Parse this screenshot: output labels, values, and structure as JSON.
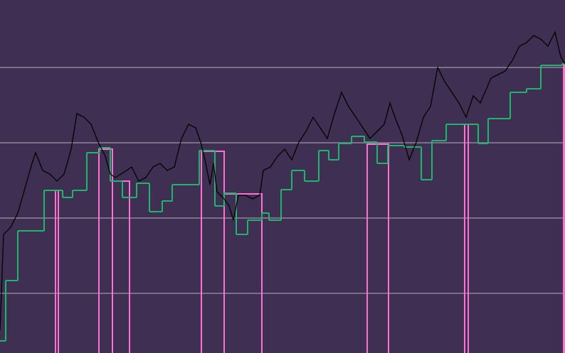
{
  "chart_data": {
    "type": "line",
    "background": "#3f2f52",
    "xlim": [
      0,
      794
    ],
    "ylim": [
      0,
      497
    ],
    "yticks": [
      84,
      190,
      296,
      402
    ],
    "grid": true,
    "grid_color": "#b8b0c0",
    "series": [
      {
        "color": "#000000",
        "style": "line",
        "x": [
          0,
          5,
          15,
          25,
          35,
          45,
          50,
          60,
          70,
          80,
          90,
          100,
          108,
          118,
          128,
          138,
          148,
          155,
          162,
          170,
          178,
          185,
          195,
          205,
          215,
          225,
          235,
          245,
          255,
          265,
          275,
          282,
          288,
          295,
          300,
          305,
          315,
          322,
          328,
          335,
          345,
          355,
          365,
          370,
          380,
          390,
          400,
          410,
          420,
          430,
          440,
          450,
          460,
          470,
          480,
          490,
          500,
          510,
          520,
          530,
          540,
          548,
          555,
          565,
          575,
          585,
          595,
          605,
          615,
          625,
          635,
          645,
          655,
          665,
          675,
          690,
          700,
          710,
          720,
          730,
          740,
          750,
          760,
          770,
          780,
          788,
          794
        ],
        "values": [
          32,
          167,
          177,
          197,
          232,
          267,
          282,
          257,
          252,
          242,
          252,
          287,
          337,
          332,
          322,
          297,
          277,
          252,
          247,
          252,
          257,
          262,
          242,
          247,
          262,
          267,
          257,
          262,
          302,
          322,
          317,
          297,
          272,
          237,
          267,
          227,
          217,
          207,
          187,
          222,
          222,
          217,
          222,
          257,
          262,
          277,
          287,
          272,
          297,
          312,
          332,
          317,
          302,
          337,
          367,
          347,
          332,
          317,
          302,
          312,
          322,
          352,
          332,
          307,
          272,
          297,
          332,
          347,
          402,
          382,
          367,
          352,
          332,
          362,
          352,
          387,
          392,
          397,
          412,
          432,
          437,
          447,
          442,
          432,
          452,
          417,
          407
        ]
      },
      {
        "color": "#1fb56c",
        "style": "step",
        "x": [
          0,
          8,
          25,
          62,
          88,
          102,
          122,
          140,
          155,
          172,
          192,
          210,
          228,
          242,
          280,
          302,
          315,
          332,
          348,
          368,
          378,
          395,
          410,
          428,
          448,
          462,
          476,
          494,
          512,
          530,
          545,
          568,
          592,
          607,
          627,
          672,
          686,
          717,
          740,
          760,
          790
        ],
        "values": [
          17,
          102,
          172,
          229,
          219,
          229,
          282,
          289,
          242,
          219,
          239,
          199,
          214,
          237,
          285,
          207,
          225,
          167,
          187,
          197,
          187,
          230,
          257,
          242,
          285,
          272,
          295,
          305,
          297,
          267,
          292,
          290,
          244,
          299,
          322,
          295,
          330,
          367,
          372,
          405,
          407
        ]
      }
    ],
    "levels_color": "#ff6fd0",
    "levels": [
      {
        "x": [
          78,
          82
        ],
        "value": 229
      },
      {
        "x": [
          139,
          158
        ],
        "value": 287
      },
      {
        "x": [
          158,
          182
        ],
        "value": 242
      },
      {
        "x": [
          283,
          315
        ],
        "value": 284
      },
      {
        "x": [
          315,
          368
        ],
        "value": 224
      },
      {
        "x": [
          516,
          546
        ],
        "value": 294
      },
      {
        "x": [
          653,
          658
        ],
        "value": 322
      },
      {
        "x": [
          792,
          794
        ],
        "value": 405
      }
    ]
  }
}
